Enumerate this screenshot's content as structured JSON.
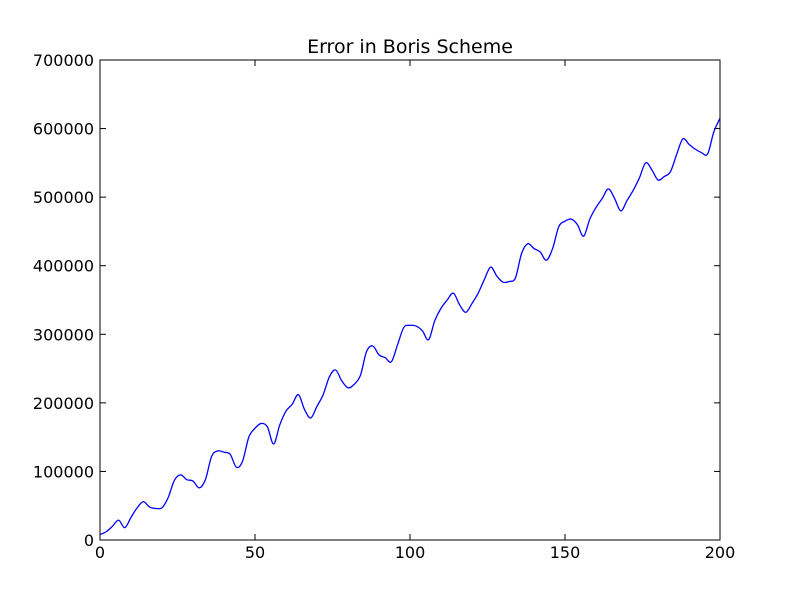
{
  "chart_data": {
    "type": "line",
    "title": "Error in Boris Scheme",
    "xlabel": "",
    "ylabel": "",
    "xlim": [
      0,
      200
    ],
    "ylim": [
      0,
      700000
    ],
    "xticks": [
      0,
      50,
      100,
      150,
      200
    ],
    "xtick_labels": [
      "0",
      "50",
      "100",
      "150",
      "200"
    ],
    "yticks": [
      0,
      100000,
      200000,
      300000,
      400000,
      500000,
      600000,
      700000
    ],
    "ytick_labels": [
      "0",
      "100000",
      "200000",
      "300000",
      "400000",
      "500000",
      "600000",
      "700000"
    ],
    "grid": false,
    "line_color": "#0000ff",
    "series": [
      {
        "x": [
          0,
          2,
          4,
          6,
          8,
          10,
          12,
          14,
          16,
          18,
          20,
          22,
          24,
          26,
          28,
          30,
          32,
          34,
          36,
          38,
          40,
          42,
          44,
          46,
          48,
          50,
          52,
          54,
          56,
          58,
          60,
          62,
          64,
          66,
          68,
          70,
          72,
          74,
          76,
          78,
          80,
          82,
          84,
          86,
          88,
          90,
          92,
          94,
          96,
          98,
          100,
          102,
          104,
          106,
          108,
          110,
          112,
          114,
          116,
          118,
          120,
          122,
          124,
          126,
          128,
          130,
          132,
          134,
          136,
          138,
          140,
          142,
          144,
          146,
          148,
          150,
          152,
          154,
          156,
          158,
          160,
          162,
          164,
          166,
          168,
          170,
          172,
          174,
          176,
          178,
          180,
          182,
          184,
          186,
          188,
          190,
          192,
          194,
          196,
          198,
          200
        ],
        "values": [
          8000,
          12000,
          20000,
          29000,
          18000,
          33000,
          47000,
          56000,
          48000,
          46000,
          47000,
          62000,
          87000,
          95000,
          88000,
          86000,
          76000,
          88000,
          122000,
          130000,
          128000,
          125000,
          106000,
          115000,
          150000,
          163000,
          170000,
          165000,
          140000,
          168000,
          188000,
          198000,
          212000,
          190000,
          178000,
          195000,
          212000,
          238000,
          248000,
          232000,
          222000,
          227000,
          240000,
          275000,
          283000,
          270000,
          266000,
          260000,
          285000,
          310000,
          313000,
          312000,
          305000,
          292000,
          320000,
          338000,
          350000,
          360000,
          343000,
          332000,
          345000,
          360000,
          380000,
          398000,
          385000,
          376000,
          377000,
          382000,
          418000,
          432000,
          425000,
          420000,
          408000,
          425000,
          457000,
          465000,
          468000,
          460000,
          443000,
          468000,
          485000,
          498000,
          512000,
          498000,
          480000,
          495000,
          510000,
          528000,
          550000,
          540000,
          525000,
          530000,
          537000,
          562000,
          585000,
          577000,
          570000,
          565000,
          563000,
          595000,
          615000
        ]
      }
    ]
  }
}
